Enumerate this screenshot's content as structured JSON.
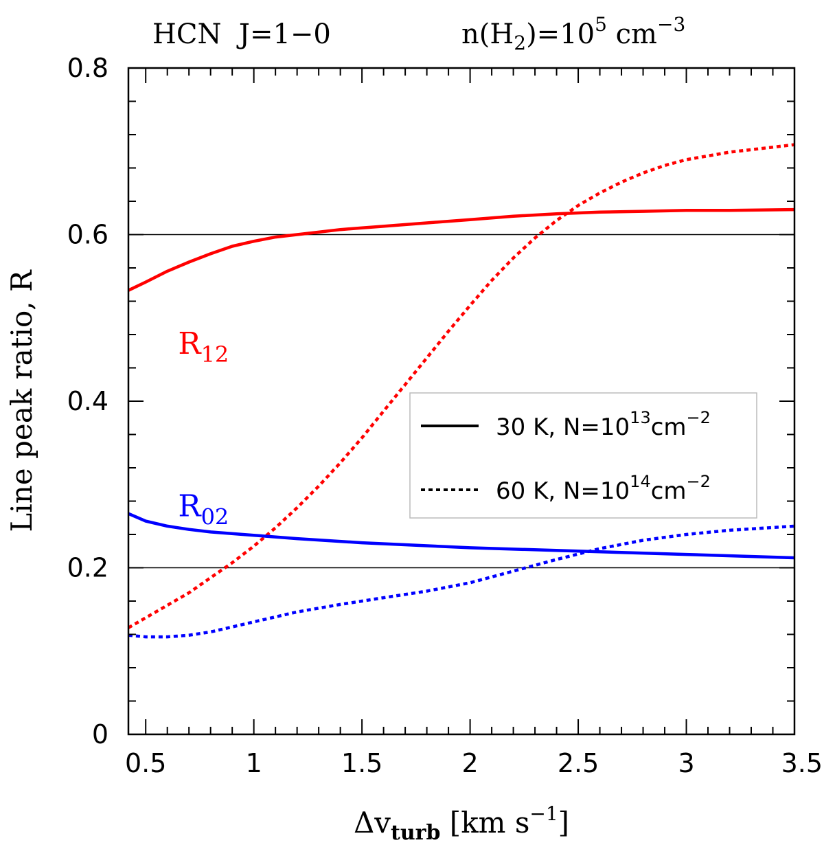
{
  "chart_data": {
    "type": "line",
    "title_left": "HCN  J=1−0",
    "title_right": {
      "prefix": "n(H",
      "sub": "2",
      "mid": ")=10",
      "sup": "5",
      "unit": " cm",
      "unit_sup": "−3"
    },
    "xlabel": {
      "delta": "Δv",
      "sub": "turb",
      "unit": " [km s",
      "unit_sup": "−1",
      "close": "]"
    },
    "ylabel": "Line peak ratio, R",
    "xlim": [
      0.42,
      3.5
    ],
    "ylim": [
      0,
      0.8
    ],
    "xticks": [
      {
        "value": 0.5,
        "label": "0.5"
      },
      {
        "value": 1,
        "label": "1"
      },
      {
        "value": 1.5,
        "label": "1.5"
      },
      {
        "value": 2,
        "label": "2"
      },
      {
        "value": 2.5,
        "label": "2.5"
      },
      {
        "value": 3,
        "label": "3"
      },
      {
        "value": 3.5,
        "label": "3.5"
      }
    ],
    "yticks": [
      {
        "value": 0,
        "label": "0"
      },
      {
        "value": 0.2,
        "label": "0.2"
      },
      {
        "value": 0.4,
        "label": "0.4"
      },
      {
        "value": 0.6,
        "label": "0.6"
      },
      {
        "value": 0.8,
        "label": "0.8"
      }
    ],
    "x_minor_step": 0.1,
    "y_minor_step": 0.04,
    "hlines": [
      0.2,
      0.6
    ],
    "series": [
      {
        "name": "R12 30 K",
        "color": "#ff0000",
        "style": "solid",
        "x": [
          0.42,
          0.5,
          0.6,
          0.7,
          0.8,
          0.9,
          1.0,
          1.1,
          1.2,
          1.3,
          1.4,
          1.5,
          1.6,
          1.8,
          2.0,
          2.2,
          2.4,
          2.6,
          2.8,
          3.0,
          3.2,
          3.5
        ],
        "y": [
          0.533,
          0.543,
          0.556,
          0.567,
          0.577,
          0.586,
          0.592,
          0.597,
          0.6,
          0.603,
          0.606,
          0.608,
          0.61,
          0.614,
          0.618,
          0.622,
          0.625,
          0.627,
          0.628,
          0.629,
          0.629,
          0.63
        ]
      },
      {
        "name": "R12 60 K",
        "color": "#ff0000",
        "style": "dotted",
        "x": [
          0.42,
          0.5,
          0.6,
          0.7,
          0.8,
          0.9,
          1.0,
          1.1,
          1.2,
          1.3,
          1.4,
          1.5,
          1.6,
          1.7,
          1.8,
          1.9,
          2.0,
          2.1,
          2.2,
          2.3,
          2.4,
          2.5,
          2.6,
          2.7,
          2.8,
          2.9,
          3.0,
          3.2,
          3.5
        ],
        "y": [
          0.128,
          0.14,
          0.155,
          0.17,
          0.188,
          0.206,
          0.226,
          0.248,
          0.272,
          0.298,
          0.326,
          0.356,
          0.388,
          0.42,
          0.452,
          0.484,
          0.515,
          0.545,
          0.572,
          0.596,
          0.617,
          0.635,
          0.65,
          0.663,
          0.674,
          0.683,
          0.69,
          0.699,
          0.708
        ]
      },
      {
        "name": "R02 30 K",
        "color": "#0000ff",
        "style": "solid",
        "x": [
          0.42,
          0.5,
          0.6,
          0.7,
          0.8,
          1.0,
          1.2,
          1.5,
          2.0,
          2.5,
          3.0,
          3.5
        ],
        "y": [
          0.265,
          0.256,
          0.25,
          0.246,
          0.243,
          0.239,
          0.235,
          0.23,
          0.224,
          0.22,
          0.216,
          0.212
        ]
      },
      {
        "name": "R02 60 K",
        "color": "#0000ff",
        "style": "dotted",
        "x": [
          0.42,
          0.5,
          0.6,
          0.7,
          0.8,
          0.9,
          1.0,
          1.2,
          1.4,
          1.6,
          1.8,
          2.0,
          2.2,
          2.4,
          2.6,
          2.8,
          3.0,
          3.2,
          3.5
        ],
        "y": [
          0.119,
          0.117,
          0.117,
          0.119,
          0.123,
          0.129,
          0.135,
          0.147,
          0.156,
          0.164,
          0.172,
          0.182,
          0.196,
          0.21,
          0.223,
          0.233,
          0.24,
          0.245,
          0.25
        ]
      }
    ],
    "annotations": [
      {
        "base": "R",
        "sub": "12",
        "color": "#ff0000",
        "x": 0.65,
        "y": 0.47
      },
      {
        "base": "R",
        "sub": "02",
        "color": "#0000ff",
        "x": 0.65,
        "y": 0.275
      }
    ],
    "legend": {
      "placement": "right-middle",
      "entries": [
        {
          "style": "solid",
          "label": "30 K, N=10",
          "sup": "13",
          "unit": "cm",
          "unit_sup": "−2"
        },
        {
          "style": "dotted",
          "label": "60 K, N=10",
          "sup": "14",
          "unit": "cm",
          "unit_sup": "−2"
        }
      ]
    }
  }
}
